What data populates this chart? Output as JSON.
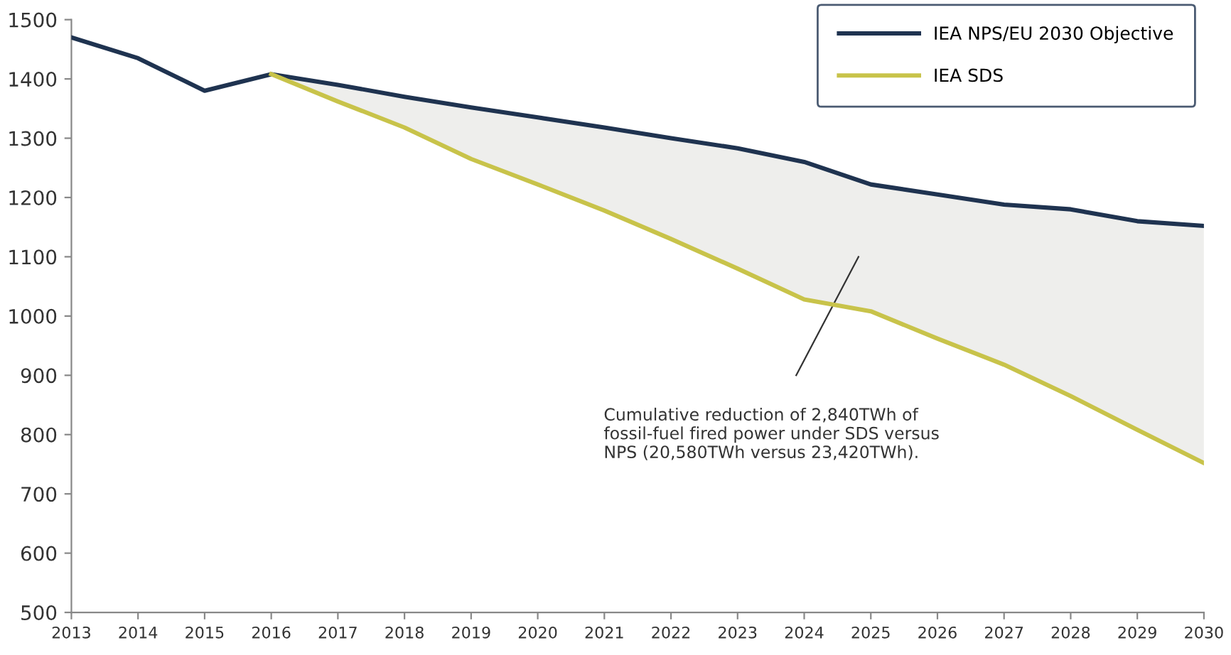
{
  "chart_data": {
    "type": "line",
    "x": [
      2013,
      2014,
      2015,
      2016,
      2017,
      2018,
      2019,
      2020,
      2021,
      2022,
      2023,
      2024,
      2025,
      2026,
      2027,
      2028,
      2029,
      2030
    ],
    "series": [
      {
        "name": "IEA NPS/EU 2030 Objective",
        "color": "#1f3350",
        "values": [
          1470,
          1435,
          1380,
          1408,
          1390,
          1370,
          1352,
          1335,
          1318,
          1300,
          1283,
          1260,
          1222,
          1205,
          1188,
          1180,
          1160,
          1152
        ]
      },
      {
        "name": "IEA SDS",
        "color": "#c8c34a",
        "values": [
          null,
          null,
          null,
          1408,
          1362,
          1318,
          1265,
          1222,
          1178,
          1130,
          1080,
          1028,
          1008,
          962,
          918,
          865,
          808,
          752
        ],
        "lower": [
          null,
          null,
          null,
          1408,
          1362,
          1318,
          1265,
          1222,
          1178,
          1130,
          1080,
          1028,
          1008,
          962,
          918,
          865,
          808,
          752
        ],
        "upper": [
          null,
          null,
          null,
          1408,
          1390,
          1370,
          1352,
          1335,
          1318,
          1300,
          1283,
          1260,
          1222,
          1205,
          1188,
          1180,
          1160,
          1152
        ]
      }
    ],
    "xlim": [
      2013,
      2030
    ],
    "ylim": [
      500,
      1500
    ],
    "xticks": [
      2013,
      2014,
      2015,
      2016,
      2017,
      2018,
      2019,
      2020,
      2021,
      2022,
      2023,
      2024,
      2025,
      2026,
      2027,
      2028,
      2029,
      2030
    ],
    "yticks": [
      500,
      600,
      700,
      800,
      900,
      1000,
      1100,
      1200,
      1300,
      1400,
      1500
    ],
    "annotations": [
      "Cumulative reduction of 2,840TWh of\nfossil-fuel fired power under SDS versus\nNPS (20,580TWh versus 23,420TWh)."
    ],
    "legend": "top right",
    "grid": false,
    "marker": "none",
    "line_style": "solid"
  }
}
